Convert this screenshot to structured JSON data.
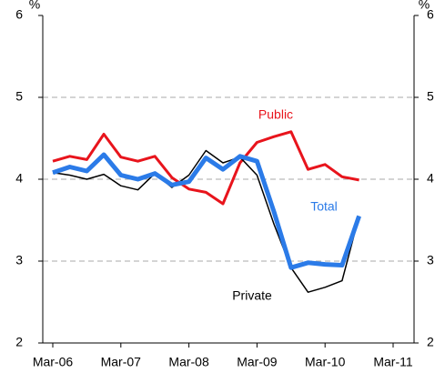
{
  "chart_data": {
    "type": "line",
    "y_label": "%",
    "y2_label": "%",
    "categories": [
      "Mar-06",
      null,
      null,
      null,
      "Mar-07",
      null,
      null,
      null,
      "Mar-08",
      null,
      null,
      null,
      "Mar-09",
      null,
      null,
      null,
      "Mar-10",
      null,
      null,
      null,
      "Mar-11"
    ],
    "series": [
      {
        "name": "Public",
        "color": "#e8141c",
        "width": 3,
        "values": [
          4.22,
          4.28,
          4.24,
          4.55,
          4.27,
          4.22,
          4.28,
          4.02,
          3.88,
          3.84,
          3.7,
          4.2,
          4.45,
          4.52,
          4.58,
          4.12,
          4.18,
          4.03,
          3.99,
          null,
          null
        ]
      },
      {
        "name": "Private",
        "color": "#000000",
        "width": 1.5,
        "values": [
          4.08,
          4.05,
          4.0,
          4.06,
          3.92,
          3.87,
          4.07,
          3.9,
          4.05,
          4.35,
          4.2,
          4.27,
          4.05,
          3.45,
          2.92,
          2.62,
          2.68,
          2.76,
          3.55,
          null,
          null
        ]
      },
      {
        "name": "Total",
        "color": "#2b7be8",
        "width": 5,
        "values": [
          4.08,
          4.15,
          4.1,
          4.3,
          4.05,
          4.0,
          4.07,
          3.93,
          3.97,
          4.26,
          4.12,
          4.28,
          4.22,
          3.6,
          2.92,
          2.98,
          2.96,
          2.95,
          3.55,
          null,
          null
        ]
      }
    ],
    "ylim": [
      2,
      6
    ],
    "yticks": [
      2,
      3,
      4,
      5,
      6
    ],
    "y2lim": [
      2,
      6
    ],
    "y2ticks": [
      2,
      3,
      4,
      5,
      6
    ],
    "grid": true
  }
}
